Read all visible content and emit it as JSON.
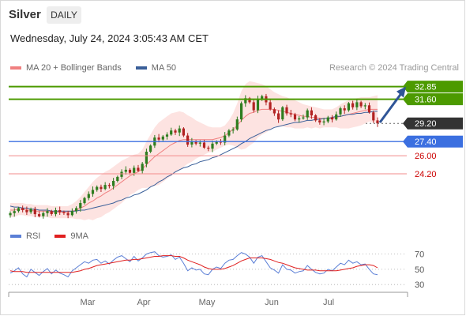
{
  "header": {
    "title": "Silver",
    "timeframe": "DAILY",
    "datetime": "Wednesday, July 24, 2024 3:05:43 AM CET",
    "credit": "Research © 2024 Trading Central"
  },
  "legend_main": [
    {
      "label": "MA 20 + Bollinger Bands",
      "color": "#f08080"
    },
    {
      "label": "MA 50",
      "color": "#3a5f99"
    }
  ],
  "legend_rsi": [
    {
      "label": "RSI",
      "color": "#5b7fd6"
    },
    {
      "label": "9MA",
      "color": "#e02020"
    }
  ],
  "colors": {
    "up": "#2e7d1f",
    "down": "#b22222",
    "resistance": "#4c9a00",
    "support": "#3b6fe0",
    "target": "#f28b8b",
    "arrow": "#2f5597",
    "current": "#333333",
    "band_fill": "#fde3e1"
  },
  "chart_data": [
    {
      "type": "candlestick",
      "title": "Silver",
      "x_tick_labels": [
        "Mar",
        "Apr",
        "May",
        "Jun",
        "Jul"
      ],
      "ylim": [
        19.5,
        34.0
      ],
      "close": [
        20.3,
        20.5,
        20.8,
        20.6,
        20.4,
        20.7,
        20.2,
        20.0,
        20.3,
        20.5,
        20.2,
        20.6,
        20.4,
        20.3,
        20.1,
        20.5,
        20.8,
        21.3,
        21.8,
        22.2,
        22.6,
        22.9,
        22.7,
        23.1,
        23.0,
        23.5,
        23.9,
        24.4,
        24.6,
        24.3,
        24.8,
        24.5,
        25.2,
        26.4,
        27.0,
        27.8,
        27.6,
        27.9,
        28.1,
        28.5,
        28.3,
        28.7,
        28.0,
        27.1,
        27.4,
        27.2,
        27.3,
        26.8,
        26.7,
        27.2,
        27.4,
        27.3,
        28.0,
        28.5,
        28.6,
        29.6,
        31.2,
        31.7,
        31.3,
        30.5,
        31.6,
        31.9,
        31.3,
        30.6,
        30.2,
        29.6,
        30.8,
        30.2,
        30.1,
        29.6,
        29.7,
        29.8,
        30.5,
        30.0,
        29.5,
        29.3,
        29.4,
        29.8,
        29.6,
        30.1,
        30.7,
        30.5,
        31.2,
        30.8,
        31.3,
        30.9,
        31.0,
        30.3,
        29.5,
        29.2
      ],
      "ma20": [
        20.6,
        20.6,
        20.7,
        20.7,
        20.6,
        20.6,
        20.5,
        20.5,
        20.5,
        20.5,
        20.4,
        20.4,
        20.4,
        20.4,
        20.4,
        20.5,
        20.6,
        20.8,
        21.0,
        21.3,
        21.5,
        21.8,
        22.0,
        22.3,
        22.5,
        22.8,
        23.1,
        23.4,
        23.7,
        24.0,
        24.2,
        24.4,
        24.7,
        25.1,
        25.5,
        25.9,
        26.2,
        26.5,
        26.8,
        27.1,
        27.3,
        27.5,
        27.6,
        27.6,
        27.6,
        27.6,
        27.6,
        27.6,
        27.6,
        27.6,
        27.7,
        27.8,
        28.0,
        28.3,
        28.6,
        29.0,
        29.5,
        29.9,
        30.2,
        30.3,
        30.5,
        30.6,
        30.6,
        30.6,
        30.6,
        30.5,
        30.4,
        30.3,
        30.2,
        30.1,
        30.0,
        29.9,
        29.9,
        29.8,
        29.8,
        29.7,
        29.7,
        29.7,
        29.7,
        29.8,
        29.9,
        30.0,
        30.1,
        30.2,
        30.3,
        30.4,
        30.5,
        30.6,
        30.6,
        30.6
      ],
      "bb_upper": [
        21.3,
        21.3,
        21.3,
        21.3,
        21.2,
        21.2,
        21.1,
        21.1,
        21.1,
        21.1,
        21.0,
        21.0,
        21.0,
        21.0,
        21.0,
        21.2,
        21.5,
        21.9,
        22.4,
        22.9,
        23.4,
        23.8,
        24.1,
        24.4,
        24.6,
        24.9,
        25.2,
        25.5,
        25.7,
        25.9,
        26.1,
        26.2,
        26.6,
        27.4,
        28.1,
        28.8,
        29.3,
        29.6,
        29.9,
        30.2,
        30.3,
        30.4,
        30.3,
        30.0,
        29.8,
        29.5,
        29.3,
        29.1,
        28.9,
        28.8,
        28.8,
        28.8,
        29.0,
        29.5,
        30.2,
        31.2,
        32.4,
        33.1,
        33.4,
        33.3,
        33.2,
        33.1,
        32.9,
        32.6,
        32.3,
        32.1,
        31.9,
        31.8,
        31.6,
        31.5,
        31.3,
        31.1,
        31.0,
        30.9,
        30.8,
        30.7,
        30.6,
        30.6,
        30.6,
        30.8,
        31.1,
        31.3,
        31.5,
        31.6,
        31.7,
        31.8,
        31.8,
        31.8,
        31.9,
        32.0
      ],
      "bb_lower": [
        19.9,
        19.9,
        20.1,
        20.1,
        20.0,
        20.0,
        19.9,
        19.9,
        19.9,
        19.9,
        19.8,
        19.8,
        19.8,
        19.8,
        19.8,
        19.8,
        19.7,
        19.7,
        19.6,
        19.7,
        19.6,
        19.8,
        19.9,
        20.2,
        20.4,
        20.7,
        21.0,
        21.3,
        21.7,
        22.1,
        22.3,
        22.6,
        22.8,
        22.8,
        22.9,
        23.0,
        23.1,
        23.4,
        23.7,
        24.0,
        24.3,
        24.6,
        24.9,
        25.2,
        25.4,
        25.7,
        25.9,
        26.1,
        26.3,
        26.4,
        26.6,
        26.8,
        27.0,
        27.1,
        27.0,
        26.8,
        26.6,
        26.7,
        27.0,
        27.3,
        27.8,
        28.1,
        28.3,
        28.6,
        28.9,
        28.9,
        28.9,
        28.8,
        28.8,
        28.7,
        28.7,
        28.7,
        28.8,
        28.7,
        28.8,
        28.7,
        28.8,
        28.8,
        28.8,
        28.8,
        28.7,
        28.7,
        28.7,
        28.8,
        28.9,
        29.0,
        29.2,
        29.4,
        29.3,
        29.2
      ],
      "ma50": [
        21.0,
        20.9,
        20.9,
        20.8,
        20.8,
        20.7,
        20.7,
        20.6,
        20.6,
        20.6,
        20.5,
        20.5,
        20.5,
        20.5,
        20.5,
        20.5,
        20.5,
        20.6,
        20.6,
        20.7,
        20.8,
        20.9,
        21.0,
        21.1,
        21.2,
        21.3,
        21.5,
        21.6,
        21.8,
        21.9,
        22.1,
        22.2,
        22.4,
        22.6,
        22.9,
        23.1,
        23.4,
        23.6,
        23.9,
        24.1,
        24.4,
        24.6,
        24.8,
        24.9,
        25.1,
        25.2,
        25.4,
        25.5,
        25.6,
        25.8,
        25.9,
        26.1,
        26.3,
        26.5,
        26.7,
        26.9,
        27.2,
        27.4,
        27.7,
        27.9,
        28.1,
        28.3,
        28.5,
        28.6,
        28.8,
        28.9,
        29.0,
        29.1,
        29.2,
        29.3,
        29.3,
        29.4,
        29.5,
        29.5,
        29.6,
        29.6,
        29.7,
        29.7,
        29.8,
        29.9,
        29.9,
        30.0,
        30.1,
        30.1,
        30.2,
        30.2,
        30.3,
        30.3,
        30.4,
        30.4
      ],
      "levels": [
        {
          "value": 32.85,
          "label": "32.85",
          "kind": "resistance"
        },
        {
          "value": 31.6,
          "label": "31.60",
          "kind": "resistance"
        },
        {
          "value": 29.2,
          "label": "29.20",
          "kind": "current"
        },
        {
          "value": 27.4,
          "label": "27.40",
          "kind": "support"
        },
        {
          "value": 26.0,
          "label": "26.00",
          "kind": "target"
        },
        {
          "value": 24.2,
          "label": "24.20",
          "kind": "target"
        }
      ],
      "arrow": {
        "from": 29.3,
        "to": 32.85
      }
    },
    {
      "type": "line",
      "title": "RSI",
      "series": [
        {
          "name": "RSI",
          "values": [
            45,
            48,
            52,
            44,
            40,
            50,
            46,
            42,
            47,
            51,
            44,
            49,
            45,
            43,
            40,
            48,
            52,
            56,
            60,
            58,
            62,
            63,
            58,
            61,
            57,
            62,
            66,
            68,
            64,
            60,
            67,
            61,
            65,
            70,
            72,
            73,
            68,
            66,
            67,
            69,
            63,
            66,
            58,
            48,
            52,
            49,
            50,
            44,
            43,
            50,
            53,
            51,
            58,
            62,
            63,
            68,
            72,
            70,
            66,
            58,
            66,
            68,
            60,
            52,
            49,
            45,
            56,
            50,
            49,
            45,
            47,
            48,
            55,
            50,
            46,
            44,
            45,
            50,
            48,
            53,
            58,
            56,
            62,
            58,
            60,
            56,
            57,
            50,
            44,
            43
          ]
        },
        {
          "name": "9MA",
          "values": [
            48,
            47,
            47,
            47,
            46,
            46,
            46,
            46,
            46,
            46,
            46,
            46,
            46,
            46,
            46,
            46,
            47,
            48,
            50,
            51,
            53,
            55,
            56,
            57,
            58,
            59,
            60,
            61,
            62,
            62,
            63,
            63,
            64,
            65,
            66,
            67,
            67,
            68,
            68,
            68,
            67,
            67,
            65,
            62,
            60,
            58,
            56,
            53,
            51,
            50,
            50,
            50,
            51,
            53,
            55,
            58,
            61,
            63,
            65,
            65,
            65,
            65,
            64,
            63,
            61,
            59,
            58,
            56,
            54,
            52,
            51,
            50,
            49,
            49,
            49,
            48,
            48,
            48,
            48,
            48,
            49,
            50,
            51,
            52,
            54,
            55,
            56,
            56,
            55,
            52
          ]
        }
      ],
      "y_ticks": [
        70,
        50,
        30
      ],
      "ylim": [
        25,
        80
      ]
    }
  ]
}
